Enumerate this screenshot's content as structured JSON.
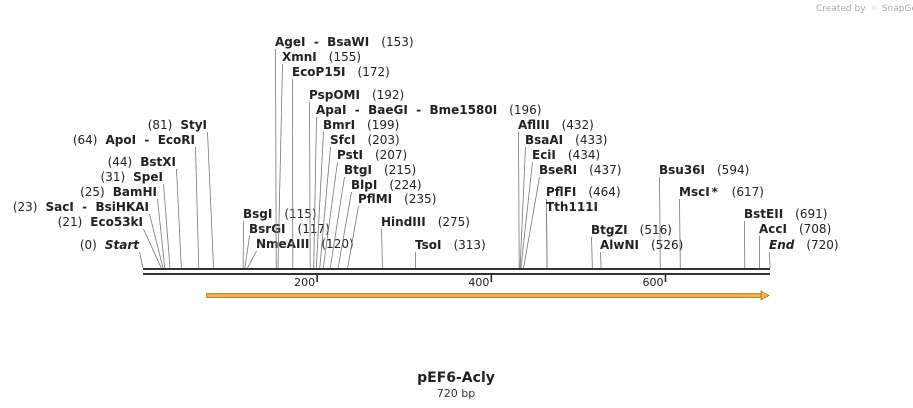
{
  "credit": {
    "text": "Created by",
    "brand": "SnapGene"
  },
  "map": {
    "title": "pEF6-Acly",
    "length_label": "720 bp",
    "length_bp": 720,
    "axis_ticks": [
      {
        "value": 200,
        "label": "200"
      },
      {
        "value": 400,
        "label": "400"
      },
      {
        "value": 600,
        "label": "600"
      }
    ],
    "feature": {
      "start": 73,
      "end": 720,
      "direction": "forward",
      "color": "#f5b041"
    },
    "sites": [
      {
        "name": "Start",
        "pos": "(0)",
        "bp": 0,
        "italic": true,
        "star": false
      },
      {
        "name": "Eco53kI",
        "pos": "(21)",
        "bp": 21,
        "italic": false,
        "star": false
      },
      {
        "name": "SacI  -  BsiHKAI",
        "pos": "(23)",
        "bp": 23,
        "italic": false,
        "star": false
      },
      {
        "name": "BamHI",
        "pos": "(25)",
        "bp": 25,
        "italic": false,
        "star": false
      },
      {
        "name": "SpeI",
        "pos": "(31)",
        "bp": 31,
        "italic": false,
        "star": false
      },
      {
        "name": "BstXI",
        "pos": "(44)",
        "bp": 44,
        "italic": false,
        "star": false
      },
      {
        "name": "ApoI  -  EcoRI",
        "pos": "(64)",
        "bp": 64,
        "italic": false,
        "star": false
      },
      {
        "name": "StyI",
        "pos": "(81)",
        "bp": 81,
        "italic": false,
        "star": false
      },
      {
        "name": "BsgI",
        "pos": "(115)",
        "bp": 115,
        "italic": false,
        "star": false
      },
      {
        "name": "BsrGI",
        "pos": "(117)",
        "bp": 117,
        "italic": false,
        "star": false
      },
      {
        "name": "NmeAIII",
        "pos": "(120)",
        "bp": 120,
        "italic": false,
        "star": false
      },
      {
        "name": "AgeI  -  BsaWI",
        "pos": "(153)",
        "bp": 153,
        "italic": false,
        "star": false
      },
      {
        "name": "XmnI",
        "pos": "(155)",
        "bp": 155,
        "italic": false,
        "star": false
      },
      {
        "name": "EcoP15I",
        "pos": "(172)",
        "bp": 172,
        "italic": false,
        "star": false
      },
      {
        "name": "PspOMI",
        "pos": "(192)",
        "bp": 192,
        "italic": false,
        "star": false
      },
      {
        "name": "ApaI  -  BaeGI  -  Bme1580I",
        "pos": "(196)",
        "bp": 196,
        "italic": false,
        "star": false
      },
      {
        "name": "BmrI",
        "pos": "(199)",
        "bp": 199,
        "italic": false,
        "star": false
      },
      {
        "name": "SfcI",
        "pos": "(203)",
        "bp": 203,
        "italic": false,
        "star": false
      },
      {
        "name": "PstI",
        "pos": "(207)",
        "bp": 207,
        "italic": false,
        "star": false
      },
      {
        "name": "BtgI",
        "pos": "(215)",
        "bp": 215,
        "italic": false,
        "star": false
      },
      {
        "name": "BlpI",
        "pos": "(224)",
        "bp": 224,
        "italic": false,
        "star": false
      },
      {
        "name": "PflMI",
        "pos": "(235)",
        "bp": 235,
        "italic": false,
        "star": false
      },
      {
        "name": "HindIII",
        "pos": "(275)",
        "bp": 275,
        "italic": false,
        "star": false
      },
      {
        "name": "TsoI",
        "pos": "(313)",
        "bp": 313,
        "italic": false,
        "star": false
      },
      {
        "name": "AflIII",
        "pos": "(432)",
        "bp": 432,
        "italic": false,
        "star": false
      },
      {
        "name": "BsaAI",
        "pos": "(433)",
        "bp": 433,
        "italic": false,
        "star": false
      },
      {
        "name": "EciI",
        "pos": "(434)",
        "bp": 434,
        "italic": false,
        "star": false
      },
      {
        "name": "BseRI",
        "pos": "(437)",
        "bp": 437,
        "italic": false,
        "star": false
      },
      {
        "name": "PflFI",
        "pos": "(464)",
        "bp": 464,
        "italic": false,
        "star": false
      },
      {
        "name": "Tth111I",
        "pos": "",
        "bp": 464,
        "italic": false,
        "star": false
      },
      {
        "name": "BtgZI",
        "pos": "(516)",
        "bp": 516,
        "italic": false,
        "star": false
      },
      {
        "name": "AlwNI",
        "pos": "(526)",
        "bp": 526,
        "italic": false,
        "star": false
      },
      {
        "name": "Bsu36I",
        "pos": "(594)",
        "bp": 594,
        "italic": false,
        "star": false
      },
      {
        "name": "MscI",
        "pos": "(617)",
        "bp": 617,
        "italic": false,
        "star": true
      },
      {
        "name": "BstEII",
        "pos": "(691)",
        "bp": 691,
        "italic": false,
        "star": false
      },
      {
        "name": "AccI",
        "pos": "(708)",
        "bp": 708,
        "italic": false,
        "star": false
      },
      {
        "name": "End",
        "pos": "(720)",
        "bp": 720,
        "italic": true,
        "star": false
      }
    ]
  }
}
